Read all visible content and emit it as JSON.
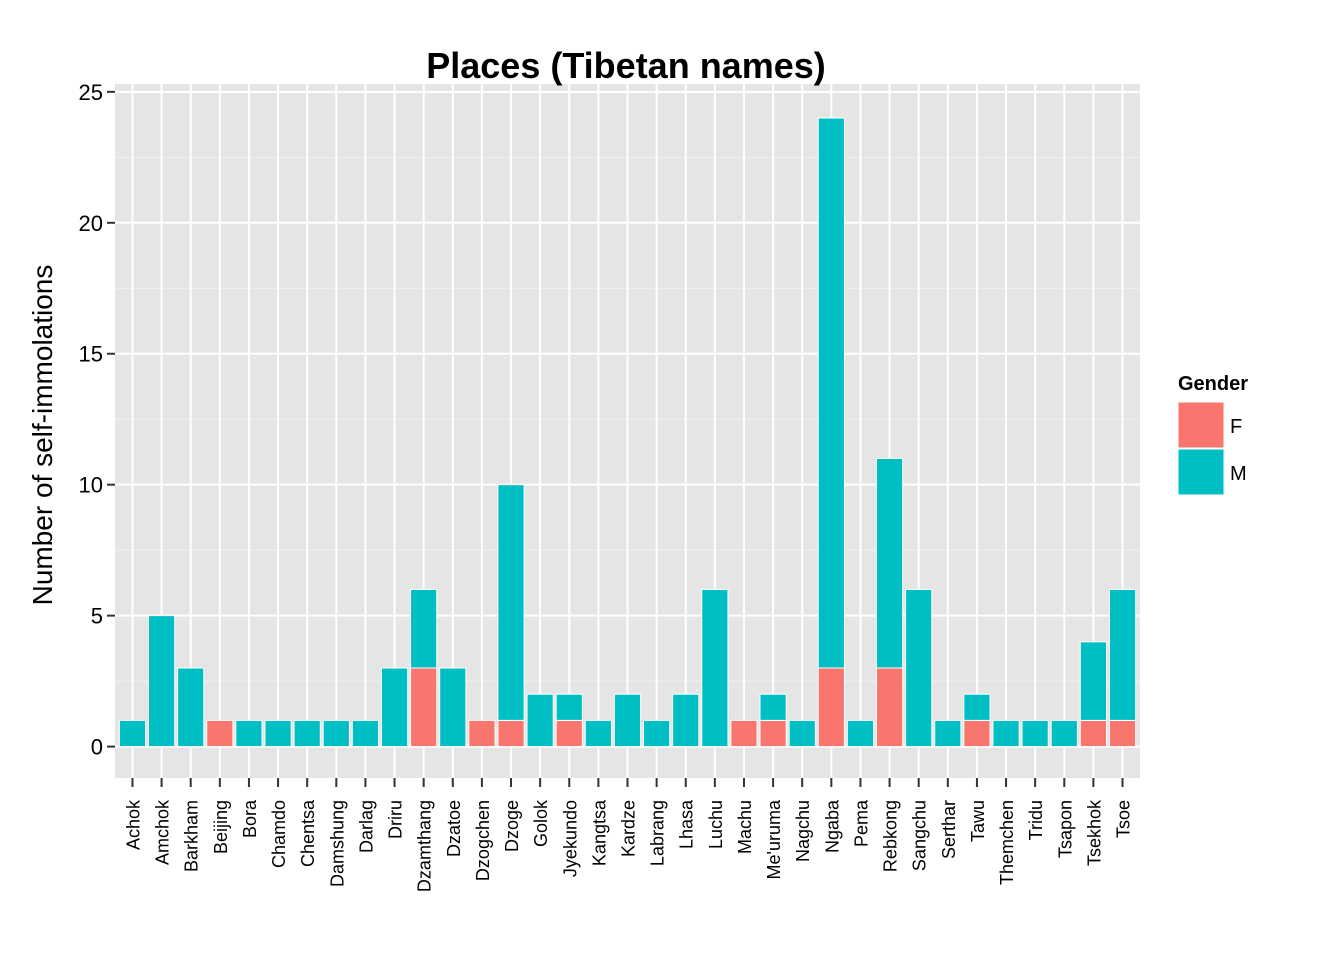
{
  "chart_data": {
    "type": "bar",
    "stacked": true,
    "title": "Places (Tibetan names)",
    "xlabel": "",
    "ylabel": "Number of self-immolations",
    "ylim": [
      -1.2,
      25.3
    ],
    "yticks": [
      0,
      5,
      10,
      15,
      20,
      25
    ],
    "grid": true,
    "legend": {
      "title": "Gender",
      "position": "right"
    },
    "categories": [
      "Achok",
      "Amchok",
      "Barkham",
      "Beijing",
      "Bora",
      "Chamdo",
      "Chentsa",
      "Damshung",
      "Darlag",
      "Driru",
      "Dzamthang",
      "Dzatoe",
      "Dzogchen",
      "Dzoge",
      "Golok",
      "Jyekundo",
      "Kangtsa",
      "Kardze",
      "Labrang",
      "Lhasa",
      "Luchu",
      "Machu",
      "Me'uruma",
      "Nagchu",
      "Ngaba",
      "Pema",
      "Rebkong",
      "Sangchu",
      "Serthar",
      "Tawu",
      "Themchen",
      "Tridu",
      "Tsapon",
      "Tsekhok",
      "Tsoe"
    ],
    "series": [
      {
        "name": "F",
        "color": "#F8766D",
        "values": [
          0,
          0,
          0,
          1,
          0,
          0,
          0,
          0,
          0,
          0,
          3,
          0,
          1,
          1,
          0,
          1,
          0,
          0,
          0,
          0,
          0,
          1,
          1,
          0,
          3,
          0,
          3,
          0,
          0,
          1,
          0,
          0,
          0,
          1,
          1
        ]
      },
      {
        "name": "M",
        "color": "#00BFC4",
        "values": [
          1,
          5,
          3,
          0,
          1,
          1,
          1,
          1,
          1,
          3,
          3,
          3,
          0,
          9,
          2,
          1,
          1,
          2,
          1,
          2,
          6,
          0,
          1,
          1,
          21,
          1,
          8,
          6,
          1,
          1,
          1,
          1,
          1,
          3,
          5
        ]
      }
    ],
    "colors": {
      "panel": "#E5E5E5",
      "grid_major": "#FFFFFF",
      "grid_minor": "#F2F2F2",
      "bar_outline": "#FFFFFF",
      "tick": "#333333"
    }
  }
}
